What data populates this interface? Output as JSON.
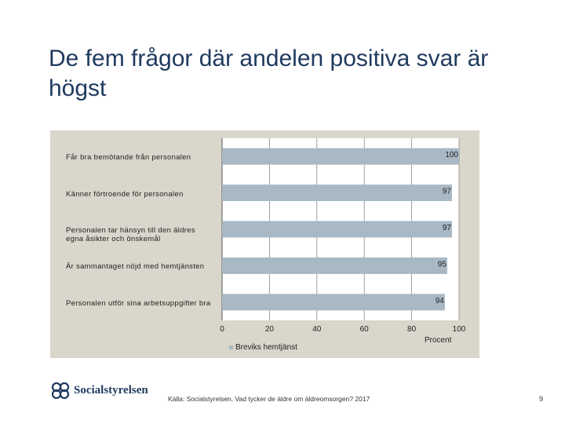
{
  "title": "De fem frågor där andelen positiva svar är högst",
  "chart_data": {
    "type": "bar",
    "orientation": "horizontal",
    "categories": [
      "Får bra bemötande från personalen",
      "Känner förtroende för personalen",
      "Personalen tar hänsyn till den äldres egna åsikter och önskemål",
      "Är sammantaget nöjd med hemtjänsten",
      "Personalen utför sina arbetsuppgifter bra"
    ],
    "series": [
      {
        "name": "Breviks hemtjänst",
        "values": [
          100,
          97,
          97,
          95,
          94
        ],
        "color": "#a8b8c4"
      }
    ],
    "xlim": [
      0,
      100
    ],
    "xticks": [
      "0",
      "20",
      "40",
      "60",
      "80",
      "100"
    ],
    "xlabel": "Procent",
    "grid": true,
    "legend": "bottom"
  },
  "footer": {
    "logo_text": "Socialstyrelsen",
    "source": "Källa: Socialstyrelsen, Vad tycker de äldre om äldreomsorgen? 2017",
    "page_number": "9"
  },
  "colors": {
    "panel_bg": "#d9d6cb",
    "plot_bg": "#ffffff",
    "bar": "#a8b8c4",
    "title": "#1f3a5f"
  }
}
